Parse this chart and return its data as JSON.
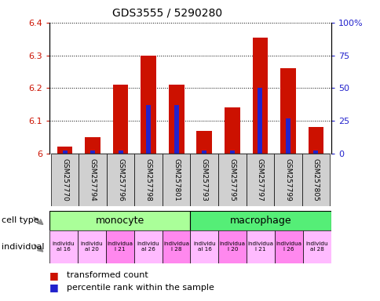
{
  "title": "GDS3555 / 5290280",
  "samples": [
    "GSM257770",
    "GSM257794",
    "GSM257796",
    "GSM257798",
    "GSM257801",
    "GSM257793",
    "GSM257795",
    "GSM257797",
    "GSM257799",
    "GSM257805"
  ],
  "red_values": [
    6.02,
    6.05,
    6.21,
    6.3,
    6.21,
    6.07,
    6.14,
    6.355,
    6.26,
    6.08
  ],
  "blue_percentiles": [
    2,
    2,
    2,
    37,
    37,
    2,
    2,
    50,
    27,
    2
  ],
  "ylim_left": [
    6.0,
    6.4
  ],
  "ylim_right": [
    0,
    100
  ],
  "yticks_left": [
    6.0,
    6.1,
    6.2,
    6.3,
    6.4
  ],
  "ytick_labels_left": [
    "6",
    "6.1",
    "6.2",
    "6.3",
    "6.4"
  ],
  "yticks_right": [
    0,
    25,
    50,
    75,
    100
  ],
  "ytick_labels_right": [
    "0",
    "25",
    "50",
    "75",
    "100%"
  ],
  "bar_width": 0.55,
  "bar_color_red": "#cc1100",
  "bar_color_blue": "#2222cc",
  "base_value": 6.0,
  "monocyte_color": "#aaff99",
  "macrophage_color": "#55ee77",
  "ind_colors": [
    "#ffbbff",
    "#ffbbff",
    "#ff88ee",
    "#ffbbff",
    "#ff88ee",
    "#ffbbff",
    "#ff88ee",
    "#ffbbff",
    "#ff88ee",
    "#ffbbff"
  ],
  "ind_labels": [
    "individu\nal 16",
    "individu\nal 20",
    "individua\nl 21",
    "individu\nal 26",
    "individua\nl 28",
    "individu\nal 16",
    "individua\nl 20",
    "individua\nl 21",
    "individua\nl 26",
    "individu\nal 28"
  ],
  "sample_bg": "#d0d0d0",
  "bg_color": "#ffffff",
  "label_color_left": "#cc1100",
  "label_color_right": "#2222cc"
}
